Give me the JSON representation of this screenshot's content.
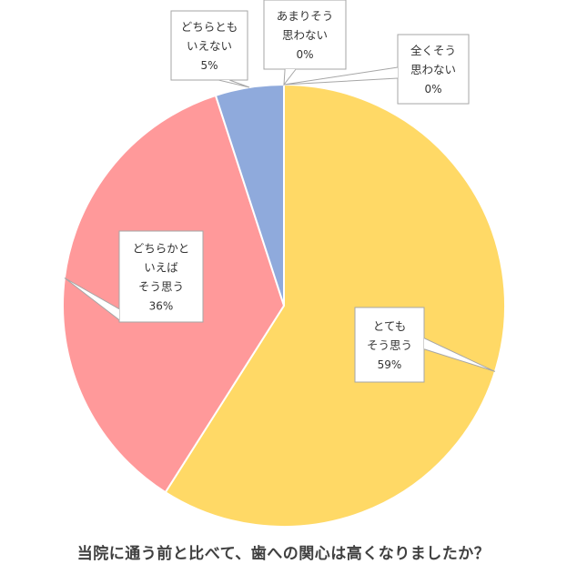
{
  "chart_data": {
    "type": "pie",
    "title": "当院に通う前と比べて、歯への関心は高くなりましたか？",
    "slices": [
      {
        "label_lines": [
          "とても",
          "そう思う"
        ],
        "value_label": "59%",
        "value": 59,
        "color": "#FFD966"
      },
      {
        "label_lines": [
          "どちらかと",
          "いえば",
          "そう思う"
        ],
        "value_label": "36%",
        "value": 36,
        "color": "#FF999A"
      },
      {
        "label_lines": [
          "どちらとも",
          "いえない"
        ],
        "value_label": "5%",
        "value": 5,
        "color": "#8FAADC"
      },
      {
        "label_lines": [
          "あまりそう",
          "思わない"
        ],
        "value_label": "0%",
        "value": 0,
        "color": "#A9D18E"
      },
      {
        "label_lines": [
          "全くそう",
          "思わない"
        ],
        "value_label": "0%",
        "value": 0,
        "color": "#C9C9C9"
      }
    ],
    "legend": "none"
  }
}
